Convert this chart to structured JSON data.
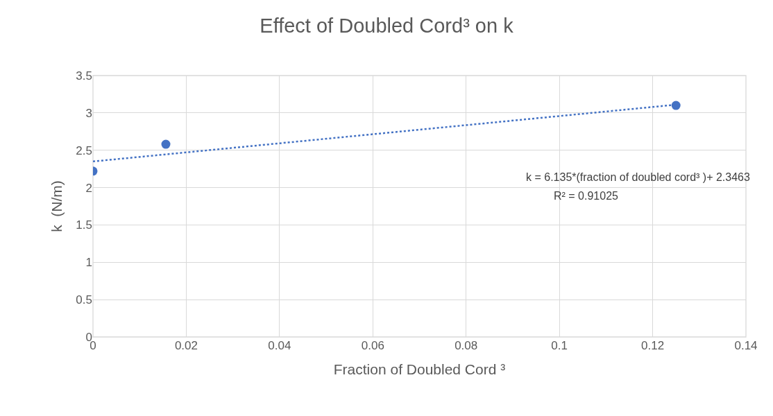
{
  "chart_data": {
    "type": "scatter",
    "title": "Effect of Doubled Cord³ on k",
    "xlabel": "Fraction of Doubled Cord ³",
    "ylabel": "k  (N/m)",
    "x": [
      0,
      0.015625,
      0.125
    ],
    "series": [
      {
        "color": "#4472c4",
        "values": [
          2.22,
          2.58,
          3.1
        ],
        "marker": "circle"
      },
      {
        "type": "line",
        "color": "#4472c4",
        "x": [
          0,
          0.125
        ],
        "values": [
          2.35,
          3.11
        ],
        "marker": "none",
        "line_style": "dotted"
      }
    ],
    "annotations": [
      "k = 6.135*(fraction of doubled cord³ )+ 2.3463",
      "R² = 0.91025"
    ],
    "xlim": [
      0,
      0.14
    ],
    "xticks": [
      0,
      0.02,
      0.04,
      0.06,
      0.08,
      0.1,
      0.12,
      0.14
    ],
    "ylim": [
      0,
      3.5
    ],
    "yticks": [
      0,
      0.5,
      1,
      1.5,
      2,
      2.5,
      3,
      3.5
    ],
    "grid": true
  }
}
